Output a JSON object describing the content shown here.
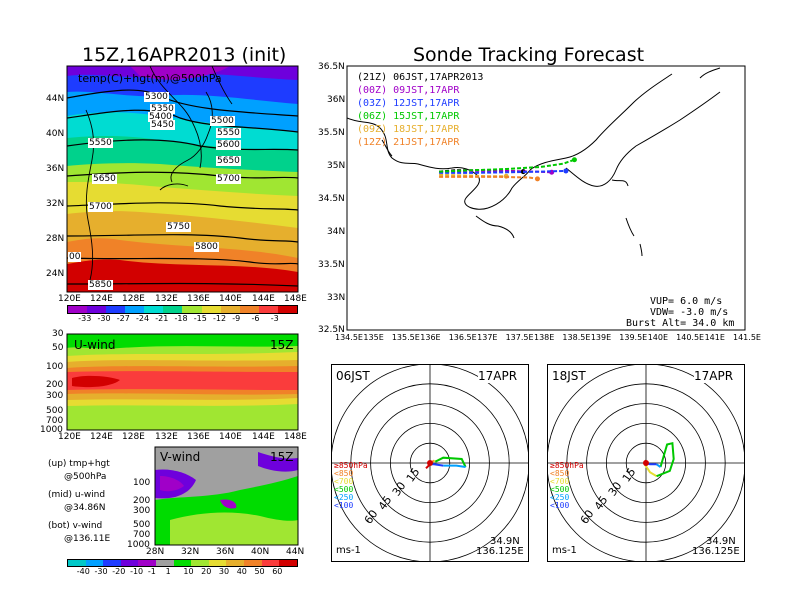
{
  "titles": {
    "left_main": "15Z,16APR2013 (init)",
    "right_main": "Sonde Tracking Forecast"
  },
  "chart_data": [
    {
      "id": "upper-map",
      "type": "heatmap",
      "title": "15Z,16APR2013 (init)",
      "overlay_label": "temp(C)+hgt(m)@500hPa",
      "x_ticks": [
        "120E",
        "124E",
        "128E",
        "132E",
        "136E",
        "140E",
        "144E",
        "148E"
      ],
      "y_ticks": [
        "44N",
        "40N",
        "36N",
        "32N",
        "28N",
        "24N"
      ],
      "contour_labels": [
        "5300",
        "5350",
        "5400",
        "5450",
        "5500",
        "5550",
        "5600",
        "5650",
        "5700",
        "5550",
        "5650",
        "5700",
        "5750",
        "5800",
        "5850",
        "00"
      ],
      "colorbar_ticks": [
        "-33",
        "-30",
        "-27",
        "-24",
        "-21",
        "-18",
        "-15",
        "-12",
        "-9",
        "-6",
        "-3"
      ],
      "colorbar_colors": [
        "#a000c8",
        "#6e00dc",
        "#1e3cff",
        "#00a0ff",
        "#00dcd2",
        "#00d28c",
        "#a0e632",
        "#e6dc32",
        "#e6af2d",
        "#f08228",
        "#fa3c3c",
        "#d20000"
      ]
    },
    {
      "id": "u-wind",
      "type": "heatmap",
      "label": "U-wind",
      "time_label": "15Z",
      "x_ticks": [
        "120E",
        "124E",
        "128E",
        "132E",
        "136E",
        "140E",
        "144E",
        "148E"
      ],
      "y_ticks": [
        "30",
        "50",
        "100",
        "200",
        "300",
        "500",
        "700",
        "1000"
      ]
    },
    {
      "id": "v-wind",
      "type": "heatmap",
      "label": "V-wind",
      "time_label": "15Z",
      "x_ticks": [
        "28N",
        "32N",
        "36N",
        "40N",
        "44N"
      ],
      "y_ticks": [
        "100",
        "200",
        "300",
        "500",
        "700",
        "1000"
      ],
      "colorbar_ticks": [
        "-40",
        "-30",
        "-20",
        "-10",
        "-1",
        "1",
        "10",
        "20",
        "30",
        "40",
        "50",
        "60"
      ],
      "colorbar_colors": [
        "#00c8c8",
        "#00a0ff",
        "#1e3cff",
        "#6e00dc",
        "#a000c8",
        "#a0a0a0",
        "#00dc00",
        "#a0e632",
        "#e6dc32",
        "#e6af2d",
        "#f08228",
        "#fa3c3c",
        "#d20000"
      ]
    },
    {
      "id": "track-map",
      "type": "line",
      "title": "Sonde Tracking Forecast",
      "x_ticks": [
        "134.5E",
        "135E",
        "135.5E",
        "136E",
        "136.5E",
        "137E",
        "137.5E",
        "138E",
        "138.5E",
        "139E",
        "139.5E",
        "140E",
        "140.5E",
        "141E",
        "141.5E"
      ],
      "y_ticks": [
        "36.5N",
        "36N",
        "35.5N",
        "35N",
        "34.5N",
        "34N",
        "33.5N",
        "33N",
        "32.5N"
      ],
      "xlim": [
        134.5,
        141.5
      ],
      "ylim": [
        32.5,
        36.5
      ],
      "legend": [
        {
          "text": "(21Z)  06JST,17APR2013",
          "color": "#000000"
        },
        {
          "text": "(00Z)  09JST,17APR",
          "color": "#a000c8"
        },
        {
          "text": "(03Z)  12JST,17APR",
          "color": "#1e3cff"
        },
        {
          "text": "(06Z)  15JST,17APR",
          "color": "#00c800"
        },
        {
          "text": "(09Z)  18JST,17APR",
          "color": "#e6af2d"
        },
        {
          "text": "(12Z)  21JST,17APR",
          "color": "#f08228"
        }
      ],
      "series": [
        {
          "name": "(21Z)  06JST,17APR2013",
          "color": "#000000",
          "x": [
            136.12,
            136.4,
            136.8,
            137.3,
            137.6
          ],
          "y": [
            34.9,
            34.92,
            34.92,
            34.91,
            34.9
          ]
        },
        {
          "name": "(00Z)  09JST,17APR",
          "color": "#a000c8",
          "x": [
            136.12,
            136.6,
            137.2,
            137.8,
            138.1
          ],
          "y": [
            34.9,
            34.91,
            34.91,
            34.9,
            34.89
          ]
        },
        {
          "name": "(03Z)  12JST,17APR",
          "color": "#1e3cff",
          "x": [
            136.12,
            136.7,
            137.3,
            137.9,
            138.35
          ],
          "y": [
            34.88,
            34.88,
            34.89,
            34.9,
            34.91
          ]
        },
        {
          "name": "(06Z)  15JST,17APR",
          "color": "#00c800",
          "x": [
            136.12,
            136.7,
            137.3,
            137.9,
            138.3,
            138.5
          ],
          "y": [
            34.9,
            34.92,
            34.94,
            34.97,
            35.02,
            35.08
          ]
        },
        {
          "name": "(09Z)  18JST,17APR",
          "color": "#e6af2d",
          "x": [
            136.12,
            136.6,
            137.0,
            137.3
          ],
          "y": [
            34.85,
            34.84,
            34.83,
            34.83
          ]
        },
        {
          "name": "(12Z)  21JST,17APR",
          "color": "#f08228",
          "x": [
            136.12,
            136.7,
            137.2,
            137.7,
            137.85
          ],
          "y": [
            34.82,
            34.82,
            34.82,
            34.81,
            34.79
          ]
        }
      ],
      "params": [
        "VUP=  6.0  m/s",
        "VDW= -3.0  m/s",
        "Burst Alt=  34.0  km"
      ]
    },
    {
      "id": "hodo-06",
      "type": "line",
      "time_label": "06JST",
      "date_label": "17APR",
      "ring_labels": [
        "15",
        "30",
        "45",
        "60"
      ],
      "levels": [
        {
          "text": "≥850hPa",
          "color": "#d20000"
        },
        {
          "text": "<850",
          "color": "#f08228"
        },
        {
          "text": "<700",
          "color": "#e6dc32"
        },
        {
          "text": "<500",
          "color": "#00c800"
        },
        {
          "text": "<250",
          "color": "#00a0ff"
        },
        {
          "text": "<100",
          "color": "#1e3cff"
        }
      ],
      "segments": [
        {
          "color": "#d20000",
          "u": [
            0,
            -1,
            -3
          ],
          "v": [
            0,
            -2,
            -4
          ]
        },
        {
          "color": "#f08228",
          "u": [
            0,
            2,
            3
          ],
          "v": [
            0,
            1,
            2
          ]
        },
        {
          "color": "#e6dc32",
          "u": [
            3,
            4
          ],
          "v": [
            2,
            1
          ]
        },
        {
          "color": "#00c800",
          "u": [
            4,
            10,
            24,
            27
          ],
          "v": [
            1,
            4,
            3,
            -3
          ]
        },
        {
          "color": "#00a0ff",
          "u": [
            27,
            20,
            10
          ],
          "v": [
            -3,
            -2,
            -2
          ]
        },
        {
          "color": "#1e3cff",
          "u": [
            10,
            3,
            1
          ],
          "v": [
            -2,
            -1,
            -1
          ]
        }
      ],
      "unit": "ms-1",
      "lat": "34.9N",
      "lon": "136.125E"
    },
    {
      "id": "hodo-18",
      "type": "line",
      "time_label": "18JST",
      "date_label": "17APR",
      "ring_labels": [
        "15",
        "30",
        "45",
        "60"
      ],
      "levels": [
        {
          "text": "≥850hPa",
          "color": "#d20000"
        },
        {
          "text": "<850",
          "color": "#f08228"
        },
        {
          "text": "<700",
          "color": "#e6dc32"
        },
        {
          "text": "<500",
          "color": "#00c800"
        },
        {
          "text": "<250",
          "color": "#00a0ff"
        },
        {
          "text": "<100",
          "color": "#1e3cff"
        }
      ],
      "segments": [
        {
          "color": "#d20000",
          "u": [
            0,
            -1,
            0
          ],
          "v": [
            0,
            1,
            2
          ]
        },
        {
          "color": "#f08228",
          "u": [
            0,
            -1
          ],
          "v": [
            0,
            -1
          ]
        },
        {
          "color": "#e6dc32",
          "u": [
            -1,
            3,
            8
          ],
          "v": [
            -1,
            -7,
            -10
          ]
        },
        {
          "color": "#00c800",
          "u": [
            8,
            18,
            21,
            20,
            16,
            11
          ],
          "v": [
            -10,
            -6,
            3,
            15,
            14,
            -3
          ]
        },
        {
          "color": "#00a0ff",
          "u": [
            11,
            8
          ],
          "v": [
            -3,
            -1
          ]
        },
        {
          "color": "#1e3cff",
          "u": [
            8,
            3,
            0
          ],
          "v": [
            -1,
            -1,
            0
          ]
        }
      ],
      "unit": "ms-1",
      "lat": "34.9N",
      "lon": "136.125E"
    }
  ]
}
